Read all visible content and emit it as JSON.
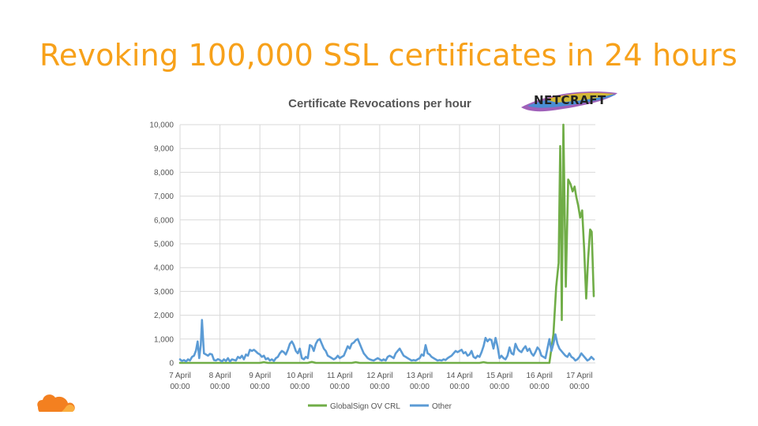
{
  "slide": {
    "title": "Revoking 100,000 SSL certificates in 24 hours",
    "logo_text": "NETCRAFT",
    "footer_icon": "cloud-logo-icon"
  },
  "colors": {
    "title": "#F7A11A",
    "globalsign": "#70AD47",
    "other": "#5B9BD5",
    "grid": "#D9D9D9",
    "logo_cloud_orange": "#F38020",
    "logo_cloud_light": "#FAAE40"
  },
  "chart_data": {
    "type": "line",
    "title": "Certificate Revocations per hour",
    "xlabel": "",
    "ylabel": "",
    "ylim": [
      0,
      10000
    ],
    "xlim": [
      0,
      10.4
    ],
    "x_unit": "days since 7 April 00:00",
    "y_ticks": [
      "0",
      "1,000",
      "2,000",
      "3,000",
      "4,000",
      "5,000",
      "6,000",
      "7,000",
      "8,000",
      "9,000",
      "10,000"
    ],
    "x_ticks": [
      {
        "day": 0,
        "line1": "7 April",
        "line2": "00:00"
      },
      {
        "day": 1,
        "line1": "8 April",
        "line2": "00:00"
      },
      {
        "day": 2,
        "line1": "9 April",
        "line2": "00:00"
      },
      {
        "day": 3,
        "line1": "10 April",
        "line2": "00:00"
      },
      {
        "day": 4,
        "line1": "11 April",
        "line2": "00:00"
      },
      {
        "day": 5,
        "line1": "12 April",
        "line2": "00:00"
      },
      {
        "day": 6,
        "line1": "13 April",
        "line2": "00:00"
      },
      {
        "day": 7,
        "line1": "14 April",
        "line2": "00:00"
      },
      {
        "day": 8,
        "line1": "15 April",
        "line2": "00:00"
      },
      {
        "day": 9,
        "line1": "16 April",
        "line2": "00:00"
      },
      {
        "day": 10,
        "line1": "17 April",
        "line2": "00:00"
      }
    ],
    "grid": true,
    "legend_position": "bottom",
    "series": [
      {
        "name": "GlobalSign OV CRL",
        "color": "#70AD47",
        "points": [
          [
            0,
            0
          ],
          [
            2.0,
            0
          ],
          [
            2.1,
            30
          ],
          [
            2.2,
            0
          ],
          [
            3.2,
            0
          ],
          [
            3.3,
            40
          ],
          [
            3.4,
            0
          ],
          [
            4.3,
            0
          ],
          [
            4.4,
            30
          ],
          [
            4.5,
            0
          ],
          [
            7.5,
            0
          ],
          [
            7.6,
            30
          ],
          [
            7.7,
            0
          ],
          [
            9.25,
            0
          ],
          [
            9.35,
            1200
          ],
          [
            9.42,
            3200
          ],
          [
            9.48,
            4200
          ],
          [
            9.52,
            9100
          ],
          [
            9.56,
            1800
          ],
          [
            9.6,
            10000
          ],
          [
            9.66,
            3200
          ],
          [
            9.72,
            7700
          ],
          [
            9.78,
            7500
          ],
          [
            9.83,
            7200
          ],
          [
            9.88,
            7400
          ],
          [
            9.92,
            7000
          ],
          [
            9.97,
            6600
          ],
          [
            10.02,
            6100
          ],
          [
            10.07,
            6400
          ],
          [
            10.12,
            4800
          ],
          [
            10.17,
            2700
          ],
          [
            10.22,
            4400
          ],
          [
            10.27,
            5600
          ],
          [
            10.31,
            5500
          ],
          [
            10.36,
            2800
          ]
        ]
      },
      {
        "name": "Other",
        "color": "#5B9BD5",
        "points": [
          [
            0,
            150
          ],
          [
            0.05,
            80
          ],
          [
            0.1,
            120
          ],
          [
            0.15,
            60
          ],
          [
            0.2,
            150
          ],
          [
            0.25,
            100
          ],
          [
            0.3,
            250
          ],
          [
            0.35,
            300
          ],
          [
            0.4,
            520
          ],
          [
            0.44,
            900
          ],
          [
            0.48,
            200
          ],
          [
            0.52,
            750
          ],
          [
            0.55,
            1800
          ],
          [
            0.6,
            400
          ],
          [
            0.65,
            350
          ],
          [
            0.7,
            300
          ],
          [
            0.75,
            380
          ],
          [
            0.8,
            350
          ],
          [
            0.85,
            120
          ],
          [
            0.9,
            100
          ],
          [
            0.95,
            160
          ],
          [
            1.0,
            120
          ],
          [
            1.05,
            60
          ],
          [
            1.1,
            150
          ],
          [
            1.15,
            80
          ],
          [
            1.2,
            200
          ],
          [
            1.25,
            60
          ],
          [
            1.3,
            150
          ],
          [
            1.4,
            100
          ],
          [
            1.45,
            250
          ],
          [
            1.5,
            200
          ],
          [
            1.55,
            300
          ],
          [
            1.6,
            150
          ],
          [
            1.65,
            350
          ],
          [
            1.7,
            300
          ],
          [
            1.75,
            550
          ],
          [
            1.8,
            500
          ],
          [
            1.85,
            550
          ],
          [
            1.9,
            480
          ],
          [
            1.95,
            400
          ],
          [
            2.0,
            350
          ],
          [
            2.05,
            250
          ],
          [
            2.1,
            300
          ],
          [
            2.15,
            150
          ],
          [
            2.2,
            200
          ],
          [
            2.25,
            100
          ],
          [
            2.3,
            150
          ],
          [
            2.35,
            80
          ],
          [
            2.4,
            200
          ],
          [
            2.45,
            250
          ],
          [
            2.5,
            400
          ],
          [
            2.55,
            500
          ],
          [
            2.6,
            450
          ],
          [
            2.65,
            350
          ],
          [
            2.7,
            550
          ],
          [
            2.75,
            800
          ],
          [
            2.8,
            900
          ],
          [
            2.85,
            750
          ],
          [
            2.9,
            500
          ],
          [
            2.95,
            400
          ],
          [
            3.0,
            600
          ],
          [
            3.05,
            200
          ],
          [
            3.1,
            150
          ],
          [
            3.15,
            250
          ],
          [
            3.2,
            200
          ],
          [
            3.25,
            750
          ],
          [
            3.3,
            700
          ],
          [
            3.35,
            500
          ],
          [
            3.4,
            800
          ],
          [
            3.45,
            950
          ],
          [
            3.5,
            1000
          ],
          [
            3.55,
            800
          ],
          [
            3.6,
            600
          ],
          [
            3.65,
            500
          ],
          [
            3.7,
            300
          ],
          [
            3.75,
            250
          ],
          [
            3.8,
            200
          ],
          [
            3.85,
            150
          ],
          [
            3.9,
            200
          ],
          [
            3.95,
            300
          ],
          [
            4.0,
            200
          ],
          [
            4.05,
            250
          ],
          [
            4.1,
            300
          ],
          [
            4.15,
            500
          ],
          [
            4.2,
            700
          ],
          [
            4.25,
            600
          ],
          [
            4.3,
            800
          ],
          [
            4.35,
            850
          ],
          [
            4.4,
            950
          ],
          [
            4.45,
            1000
          ],
          [
            4.5,
            800
          ],
          [
            4.55,
            600
          ],
          [
            4.6,
            400
          ],
          [
            4.65,
            300
          ],
          [
            4.7,
            200
          ],
          [
            4.75,
            150
          ],
          [
            4.8,
            120
          ],
          [
            4.85,
            100
          ],
          [
            4.9,
            150
          ],
          [
            4.95,
            200
          ],
          [
            5.0,
            150
          ],
          [
            5.05,
            100
          ],
          [
            5.1,
            150
          ],
          [
            5.15,
            100
          ],
          [
            5.2,
            250
          ],
          [
            5.25,
            300
          ],
          [
            5.3,
            250
          ],
          [
            5.35,
            200
          ],
          [
            5.4,
            400
          ],
          [
            5.45,
            500
          ],
          [
            5.5,
            600
          ],
          [
            5.55,
            450
          ],
          [
            5.6,
            300
          ],
          [
            5.65,
            250
          ],
          [
            5.7,
            200
          ],
          [
            5.75,
            150
          ],
          [
            5.8,
            100
          ],
          [
            5.85,
            120
          ],
          [
            5.9,
            100
          ],
          [
            5.95,
            150
          ],
          [
            6.0,
            200
          ],
          [
            6.05,
            350
          ],
          [
            6.1,
            300
          ],
          [
            6.15,
            750
          ],
          [
            6.2,
            400
          ],
          [
            6.25,
            350
          ],
          [
            6.3,
            250
          ],
          [
            6.35,
            200
          ],
          [
            6.4,
            150
          ],
          [
            6.45,
            100
          ],
          [
            6.5,
            120
          ],
          [
            6.55,
            100
          ],
          [
            6.6,
            150
          ],
          [
            6.65,
            120
          ],
          [
            6.7,
            200
          ],
          [
            6.75,
            250
          ],
          [
            6.8,
            300
          ],
          [
            6.85,
            400
          ],
          [
            6.9,
            500
          ],
          [
            6.95,
            450
          ],
          [
            7.0,
            500
          ],
          [
            7.05,
            550
          ],
          [
            7.1,
            400
          ],
          [
            7.15,
            450
          ],
          [
            7.2,
            300
          ],
          [
            7.25,
            350
          ],
          [
            7.3,
            500
          ],
          [
            7.35,
            250
          ],
          [
            7.4,
            200
          ],
          [
            7.45,
            300
          ],
          [
            7.5,
            250
          ],
          [
            7.55,
            450
          ],
          [
            7.6,
            700
          ],
          [
            7.65,
            1050
          ],
          [
            7.7,
            900
          ],
          [
            7.75,
            1000
          ],
          [
            7.8,
            950
          ],
          [
            7.85,
            600
          ],
          [
            7.9,
            1050
          ],
          [
            7.95,
            700
          ],
          [
            8.0,
            200
          ],
          [
            8.05,
            300
          ],
          [
            8.1,
            200
          ],
          [
            8.15,
            150
          ],
          [
            8.2,
            300
          ],
          [
            8.25,
            650
          ],
          [
            8.3,
            400
          ],
          [
            8.35,
            350
          ],
          [
            8.4,
            800
          ],
          [
            8.45,
            600
          ],
          [
            8.5,
            500
          ],
          [
            8.55,
            450
          ],
          [
            8.6,
            600
          ],
          [
            8.65,
            700
          ],
          [
            8.7,
            500
          ],
          [
            8.75,
            600
          ],
          [
            8.8,
            400
          ],
          [
            8.85,
            300
          ],
          [
            8.9,
            450
          ],
          [
            8.95,
            650
          ],
          [
            9.0,
            550
          ],
          [
            9.05,
            300
          ],
          [
            9.1,
            250
          ],
          [
            9.15,
            200
          ],
          [
            9.2,
            600
          ],
          [
            9.25,
            1000
          ],
          [
            9.3,
            500
          ],
          [
            9.35,
            800
          ],
          [
            9.4,
            1200
          ],
          [
            9.45,
            800
          ],
          [
            9.5,
            600
          ],
          [
            9.55,
            500
          ],
          [
            9.6,
            400
          ],
          [
            9.65,
            300
          ],
          [
            9.7,
            250
          ],
          [
            9.75,
            400
          ],
          [
            9.8,
            250
          ],
          [
            9.85,
            200
          ],
          [
            9.9,
            100
          ],
          [
            9.95,
            150
          ],
          [
            10.0,
            250
          ],
          [
            10.05,
            400
          ],
          [
            10.1,
            300
          ],
          [
            10.15,
            200
          ],
          [
            10.2,
            100
          ],
          [
            10.25,
            150
          ],
          [
            10.3,
            250
          ],
          [
            10.36,
            150
          ]
        ]
      }
    ]
  }
}
